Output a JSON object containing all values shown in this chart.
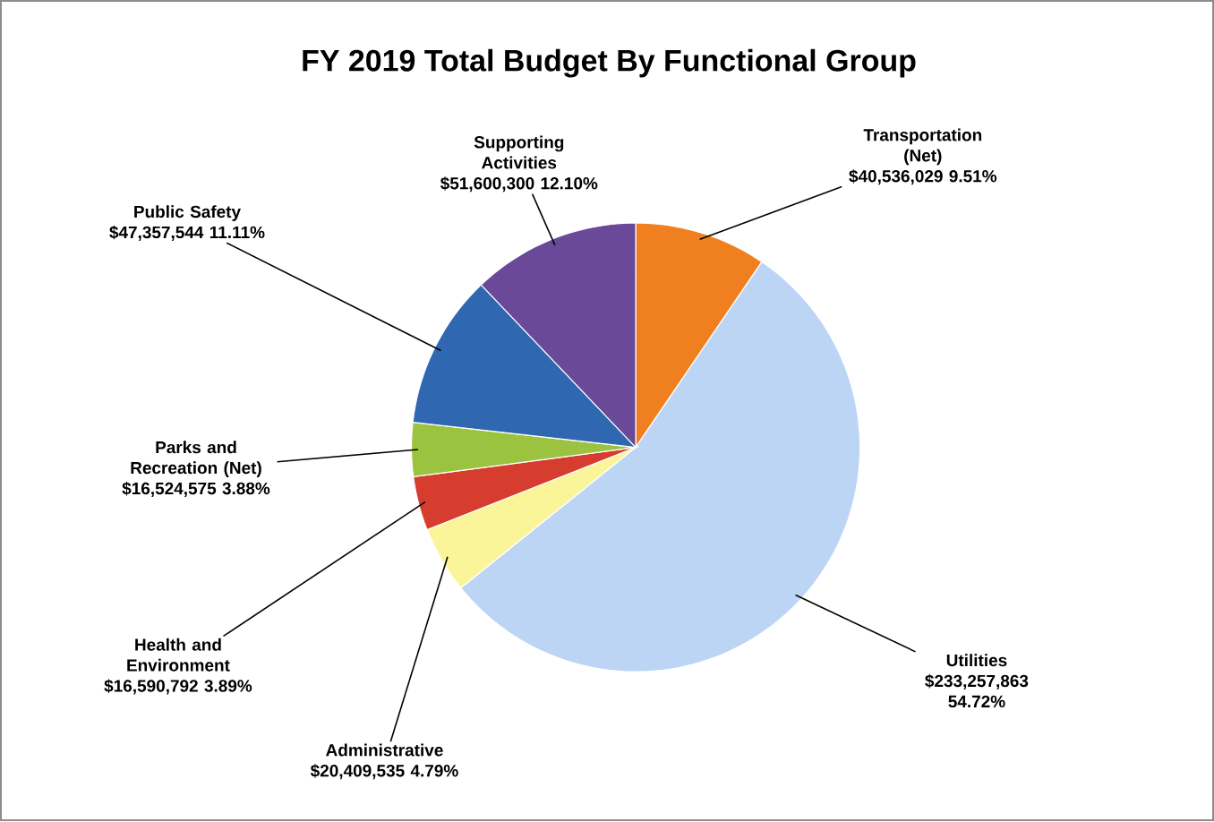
{
  "chart_data": {
    "type": "pie",
    "title": "FY 2019 Total Budget By Functional Group",
    "categories": [
      "Transportation (Net)",
      "Utilities",
      "Administrative",
      "Health and Environment",
      "Parks and Recreation (Net)",
      "Public Safety",
      "Supporting Activities"
    ],
    "values": [
      40536029,
      233257863,
      20409535,
      16590792,
      16524575,
      47357544,
      51600300
    ],
    "colors": [
      "#f0801f",
      "#bcd5f5",
      "#fbf59a",
      "#d63d2e",
      "#9bc340",
      "#2f67b0",
      "#6a4a98"
    ],
    "value_labels": [
      "$40,536,029 9.51%",
      "$233,257,863 54.72%",
      "$20,409,535 4.79%",
      "$16,590,792 3.89%",
      "$16,524,575 3.88%",
      "$47,357,544 11.11%",
      "$51,600,300 12.10%"
    ]
  }
}
